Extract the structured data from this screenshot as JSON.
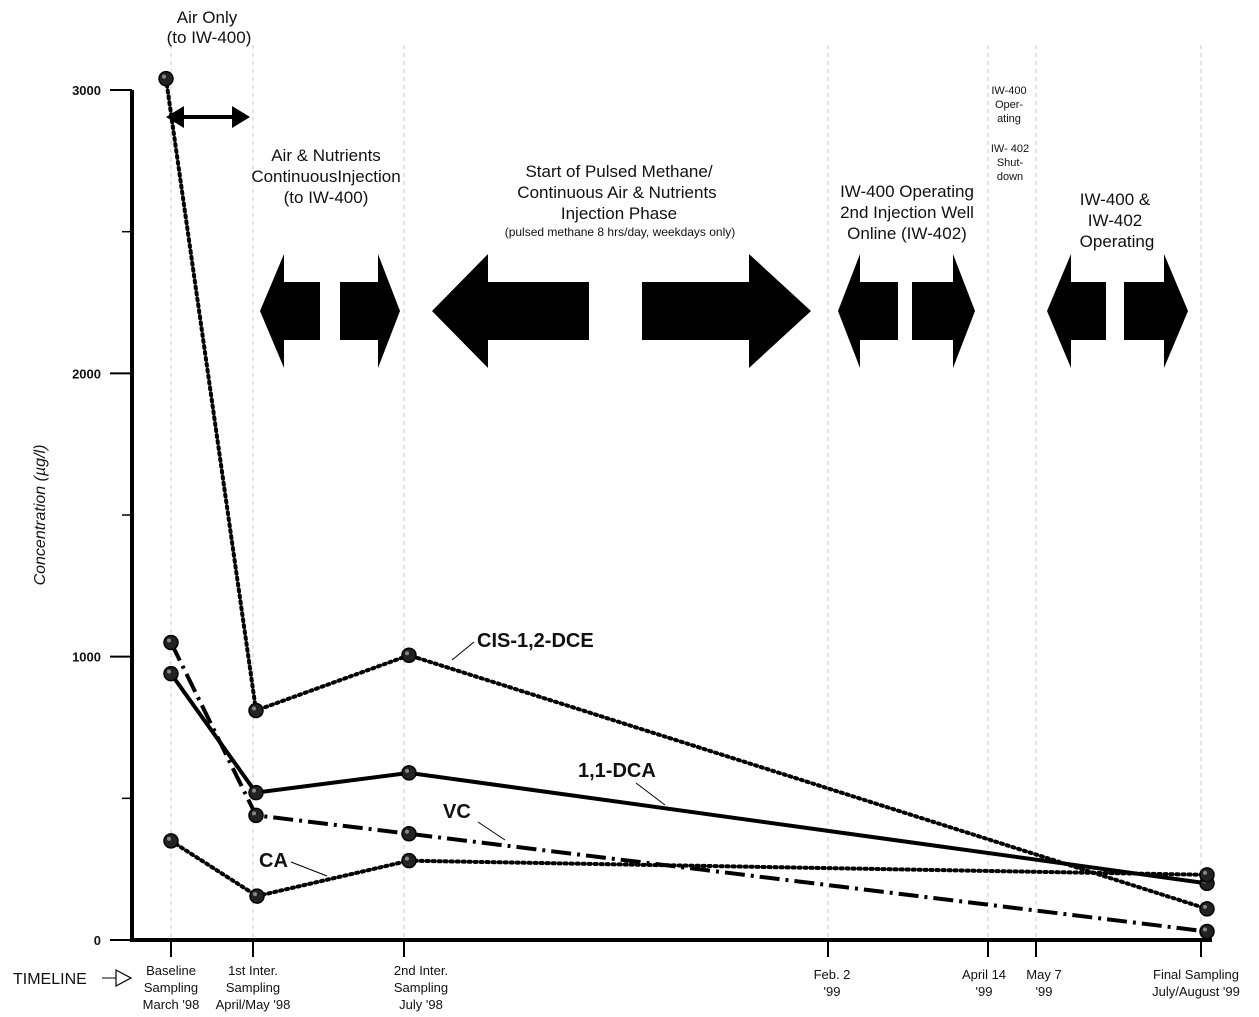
{
  "chart_data": {
    "type": "line",
    "ylabel": "Concentration (µg/l)",
    "ylim": [
      0,
      3200
    ],
    "yticks": [
      {
        "value": 0,
        "label": "0"
      },
      {
        "value": 1000,
        "label": "1000"
      },
      {
        "value": 2000,
        "label": "2000"
      },
      {
        "value": 3000,
        "label": "3000"
      }
    ],
    "yminor": [
      500,
      1500,
      2500
    ],
    "timeline_title": "TIMELINE",
    "timeline": [
      {
        "key": "baseline",
        "lines": [
          "Baseline",
          "Sampling",
          "March '98"
        ]
      },
      {
        "key": "inter1",
        "lines": [
          "1st Inter.",
          "Sampling",
          "April/May '98"
        ]
      },
      {
        "key": "inter2",
        "lines": [
          "2nd Inter.",
          "Sampling",
          "July '98"
        ]
      },
      {
        "key": "feb2",
        "lines": [
          "Feb. 2",
          "'99"
        ]
      },
      {
        "key": "apr14",
        "lines": [
          "April 14",
          "'99"
        ]
      },
      {
        "key": "may7",
        "lines": [
          "May 7",
          "'99"
        ]
      },
      {
        "key": "final",
        "lines": [
          "Final Sampling",
          "July/August '99"
        ]
      }
    ],
    "series": [
      {
        "name": "CIS-1,2-DCE",
        "style": "dotted",
        "values": [
          3040,
          810,
          1005,
          110
        ]
      },
      {
        "name": "1,1-DCA",
        "style": "solid",
        "values": [
          940,
          520,
          590,
          200
        ]
      },
      {
        "name": "VC",
        "style": "dashdot",
        "values": [
          1050,
          440,
          375,
          30
        ]
      },
      {
        "name": "CA",
        "style": "dotted",
        "values": [
          350,
          155,
          280,
          230
        ]
      }
    ],
    "phases": [
      {
        "lines": [
          "Air Only",
          "(to IW-400)"
        ]
      },
      {
        "lines": [
          "Air & Nutrients",
          "ContinuousInjection",
          "(to IW-400)"
        ]
      },
      {
        "lines": [
          "Start of Pulsed Methane/",
          "Continuous Air & Nutrients",
          "Injection Phase"
        ],
        "note": "(pulsed methane 8 hrs/day, weekdays only)"
      },
      {
        "lines": [
          "IW-400 Operating",
          "2nd Injection Well",
          "Online (IW-402)"
        ]
      },
      {
        "lines": [
          "IW-400",
          "Oper-",
          "ating"
        ]
      },
      {
        "lines": [
          "IW- 402",
          "Shut-",
          "down"
        ]
      },
      {
        "lines": [
          "IW-400 &",
          "IW-402",
          "Operating"
        ]
      }
    ]
  }
}
